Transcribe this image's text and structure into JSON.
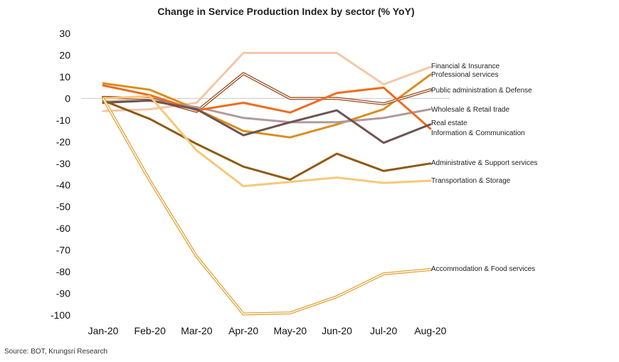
{
  "chart_data": {
    "type": "line",
    "title": "Change in Service Production Index by sector (% YoY)",
    "xlabel": "",
    "ylabel": "",
    "ylim": [
      -100,
      30
    ],
    "yticks": [
      30,
      20,
      10,
      0,
      -10,
      -20,
      -30,
      -40,
      -50,
      -60,
      -70,
      -80,
      -90,
      -100
    ],
    "categories": [
      "Jan-20",
      "Feb-20",
      "Mar-20",
      "Apr-20",
      "May-20",
      "Jun-20",
      "Jul-20",
      "Aug-20"
    ],
    "legend_position": "right",
    "series": [
      {
        "name": "Financial & Insurance",
        "color": "#F4C7A6",
        "style": "solid",
        "width": 3,
        "values": [
          -5.8,
          -5,
          -2,
          21,
          21,
          21,
          6.5,
          14.5
        ]
      },
      {
        "name": "Professional services",
        "color": "#D98E1E",
        "style": "solid",
        "width": 3,
        "values": [
          7,
          4,
          -5,
          -15,
          -18,
          -12,
          -5,
          11
        ]
      },
      {
        "name": "Public administration & Defense",
        "color": "#9A4A1E",
        "style": "double",
        "width": 1.2,
        "values": [
          0.5,
          0,
          -6,
          11.5,
          0,
          0,
          -2.5,
          4
        ]
      },
      {
        "name": "Wholesale & Retail trade",
        "color": "#B09A9A",
        "style": "solid",
        "width": 3,
        "values": [
          -1.5,
          -1,
          -4,
          -9,
          -11,
          -11,
          -9,
          -5
        ]
      },
      {
        "name": "Real estate",
        "color": "#EC6C1F",
        "style": "solid",
        "width": 3,
        "values": [
          6,
          1.5,
          -5.5,
          -2,
          -6.5,
          2.5,
          5,
          -14
        ]
      },
      {
        "name": "Information & Communication",
        "color": "#6E5352",
        "style": "solid",
        "width": 3,
        "values": [
          -2,
          -1,
          -5,
          -17,
          -11,
          -5.5,
          -20.5,
          -12
        ]
      },
      {
        "name": "Administrative & Support services",
        "color": "#8E5A12",
        "style": "solid",
        "width": 3,
        "values": [
          -1,
          -9.5,
          -21,
          -31.5,
          -37.5,
          -25.5,
          -33.5,
          -30
        ]
      },
      {
        "name": "Transportation & Storage",
        "color": "#F6C879",
        "style": "solid",
        "width": 3,
        "values": [
          0,
          1,
          -24,
          -40.5,
          -38.5,
          -36.5,
          -39,
          -38
        ]
      },
      {
        "name": "Accommodation & Food services",
        "color": "#E2A43A",
        "style": "double",
        "width": 1.2,
        "values": [
          0,
          -38,
          -73,
          -99.5,
          -99,
          -91.5,
          -81,
          -79
        ]
      }
    ]
  },
  "source": "Source: BOT, Krungsri Research"
}
